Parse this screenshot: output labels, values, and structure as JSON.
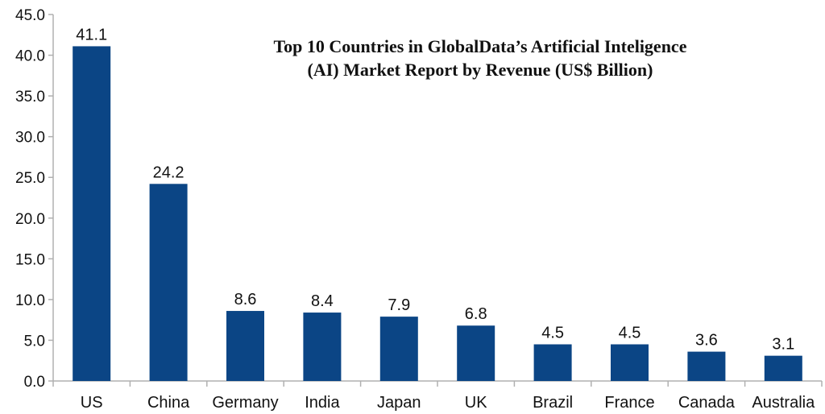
{
  "chart_data": {
    "type": "bar",
    "title_lines": [
      "Top 10 Countries in GlobalData’s Artificial Inteligence",
      "(AI) Market Report by Revenue (US$ Billion)"
    ],
    "categories": [
      "US",
      "China",
      "Germany",
      "India",
      "Japan",
      "UK",
      "Brazil",
      "France",
      "Canada",
      "Australia"
    ],
    "values": [
      41.1,
      24.2,
      8.6,
      8.4,
      7.9,
      6.8,
      4.5,
      4.5,
      3.6,
      3.1
    ],
    "value_labels": [
      "41.1",
      "24.2",
      "8.6",
      "8.4",
      "7.9",
      "6.8",
      "4.5",
      "4.5",
      "3.6",
      "3.1"
    ],
    "y_ticks": [
      "0.0",
      "5.0",
      "10.0",
      "15.0",
      "20.0",
      "25.0",
      "30.0",
      "35.0",
      "40.0",
      "45.0"
    ],
    "ylim": [
      0,
      45
    ],
    "xlabel": "",
    "ylabel": "",
    "grid": false,
    "legend": "none",
    "bar_color": "#0b4585",
    "axis_color": "#b0b0b0"
  }
}
